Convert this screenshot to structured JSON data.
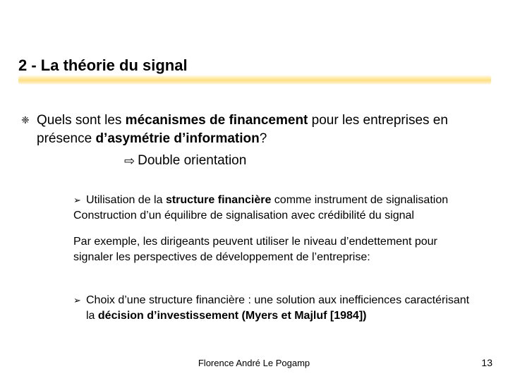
{
  "colors": {
    "background": "#ffffff",
    "text": "#000000",
    "underline_gradient": [
      "#ffd954",
      "#ffd23c",
      "#ffc61e",
      "#ffb90a"
    ]
  },
  "title": "2 - La théorie du signal",
  "level1_bullet_glyph": "❈",
  "arrow_glyph": "⇨",
  "level2_bullet_glyph": "➢",
  "main": {
    "line1": "Quels sont les ",
    "line1_bold": "mécanismes de financement",
    "line1_tail": " pour les entreprises en présence ",
    "line1_bold2": "d’asymétrie d’information",
    "line1_q": "?",
    "arrow_text": "Double orientation"
  },
  "sub1": {
    "pre": "Utilisation de la ",
    "bold": "structure financière",
    "post": " comme instrument de signalisation",
    "cont": "Construction d’un équilibre de signalisation avec crédibilité du signal"
  },
  "example": "Par exemple, les dirigeants peuvent utiliser le niveau d’endettement pour signaler les perspectives de développement de l’entreprise:",
  "sub2": {
    "pre": "Choix d’une structure financière : une solution aux inefficiences caractérisant la ",
    "bold": "décision d’investissement (Myers et Majluf [1984])"
  },
  "footer_author": "Florence André Le Pogamp",
  "footer_page": "13"
}
